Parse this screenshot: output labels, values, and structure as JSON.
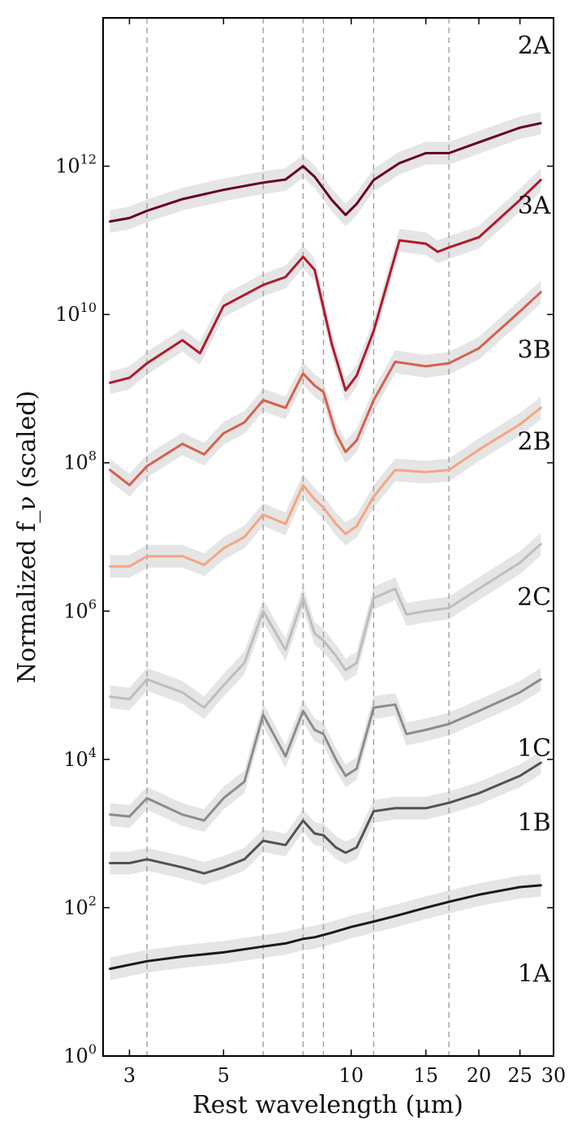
{
  "chart_data": {
    "type": "line",
    "title": "",
    "xlabel": "Rest wavelength (μm)",
    "ylabel": "Normalized f_ν (scaled)",
    "x_scale": "log",
    "y_scale": "log",
    "xlim": [
      2.6,
      30
    ],
    "ylim": [
      1,
      100000000000000.0
    ],
    "grid": false,
    "x_ticks": [
      {
        "value": 3,
        "label": "3"
      },
      {
        "value": 5,
        "label": "5"
      },
      {
        "value": 10,
        "label": "10"
      },
      {
        "value": 15,
        "label": "15"
      },
      {
        "value": 20,
        "label": "20"
      },
      {
        "value": 25,
        "label": "25"
      },
      {
        "value": 30,
        "label": "30"
      }
    ],
    "y_ticks": [
      {
        "value": 1,
        "base": "10",
        "exp": "0"
      },
      {
        "value": 100,
        "base": "10",
        "exp": "2"
      },
      {
        "value": 10000,
        "base": "10",
        "exp": "4"
      },
      {
        "value": 1000000,
        "base": "10",
        "exp": "6"
      },
      {
        "value": 100000000,
        "base": "10",
        "exp": "8"
      },
      {
        "value": 10000000000,
        "base": "10",
        "exp": "10"
      },
      {
        "value": 1000000000000,
        "base": "10",
        "exp": "12"
      }
    ],
    "reference_lines_x": [
      3.3,
      6.2,
      7.7,
      8.6,
      11.3,
      17.0
    ],
    "series": [
      {
        "name": "2A",
        "label_position": [
          27,
          33000000000000.0
        ],
        "color": "#67001f",
        "points": [
          [
            2.7,
            180000000000.0
          ],
          [
            3.0,
            200000000000.0
          ],
          [
            3.3,
            250000000000.0
          ],
          [
            4,
            360000000000.0
          ],
          [
            5,
            480000000000.0
          ],
          [
            6.2,
            600000000000.0
          ],
          [
            7.0,
            660000000000.0
          ],
          [
            7.7,
            1000000000000.0
          ],
          [
            8.2,
            720000000000.0
          ],
          [
            9,
            350000000000.0
          ],
          [
            9.7,
            220000000000.0
          ],
          [
            10.3,
            310000000000.0
          ],
          [
            11.3,
            650000000000.0
          ],
          [
            13,
            1100000000000.0
          ],
          [
            15,
            1500000000000.0
          ],
          [
            17,
            1500000000000.0
          ],
          [
            20,
            2100000000000.0
          ],
          [
            25,
            3300000000000.0
          ],
          [
            28,
            3800000000000.0
          ]
        ]
      },
      {
        "name": "3A",
        "label_position": [
          27,
          230000000000.0
        ],
        "color": "#b2182b",
        "points": [
          [
            2.7,
            1200000000.0
          ],
          [
            3.0,
            1400000000.0
          ],
          [
            3.3,
            2200000000.0
          ],
          [
            4,
            4500000000.0
          ],
          [
            4.4,
            3000000000.0
          ],
          [
            5,
            13000000000.0
          ],
          [
            6.2,
            25000000000.0
          ],
          [
            7.0,
            32000000000.0
          ],
          [
            7.7,
            60000000000.0
          ],
          [
            8.2,
            40000000000.0
          ],
          [
            9,
            4000000000.0
          ],
          [
            9.7,
            950000000.0
          ],
          [
            10.3,
            1500000000.0
          ],
          [
            11.3,
            6000000000.0
          ],
          [
            13,
            100000000000.0
          ],
          [
            15,
            90000000000.0
          ],
          [
            16,
            70000000000.0
          ],
          [
            17,
            80000000000.0
          ],
          [
            20,
            110000000000.0
          ],
          [
            25,
            350000000000.0
          ],
          [
            28,
            650000000000.0
          ]
        ]
      },
      {
        "name": "3B",
        "label_position": [
          27,
          2600000000.0
        ],
        "color": "#d6604d",
        "points": [
          [
            2.7,
            80000000.0
          ],
          [
            3.0,
            50000000.0
          ],
          [
            3.3,
            90000000.0
          ],
          [
            4,
            180000000.0
          ],
          [
            4.5,
            130000000.0
          ],
          [
            5,
            250000000.0
          ],
          [
            5.6,
            350000000.0
          ],
          [
            6.2,
            700000000.0
          ],
          [
            7.0,
            550000000.0
          ],
          [
            7.7,
            1600000000.0
          ],
          [
            8.2,
            1100000000.0
          ],
          [
            8.6,
            900000000.0
          ],
          [
            9.2,
            250000000.0
          ],
          [
            9.7,
            140000000.0
          ],
          [
            10.3,
            200000000.0
          ],
          [
            11.3,
            700000000.0
          ],
          [
            12.7,
            2300000000.0
          ],
          [
            15,
            2000000000.0
          ],
          [
            17,
            2200000000.0
          ],
          [
            20,
            3500000000.0
          ],
          [
            25,
            11000000000.0
          ],
          [
            28,
            20000000000.0
          ]
        ]
      },
      {
        "name": "2B",
        "label_position": [
          27,
          150000000.0
        ],
        "color": "#f4a582",
        "points": [
          [
            2.7,
            4000000.0
          ],
          [
            3.0,
            4000000.0
          ],
          [
            3.3,
            5500000.0
          ],
          [
            4,
            5500000.0
          ],
          [
            4.5,
            4200000.0
          ],
          [
            5,
            7000000.0
          ],
          [
            5.6,
            10000000.0
          ],
          [
            6.2,
            20000000.0
          ],
          [
            7.0,
            15000000.0
          ],
          [
            7.7,
            50000000.0
          ],
          [
            8.2,
            32000000.0
          ],
          [
            8.6,
            25000000.0
          ],
          [
            9.2,
            15000000.0
          ],
          [
            9.7,
            11000000.0
          ],
          [
            10.3,
            14000000.0
          ],
          [
            11.3,
            35000000.0
          ],
          [
            12.7,
            80000000.0
          ],
          [
            15,
            75000000.0
          ],
          [
            17,
            80000000.0
          ],
          [
            20,
            150000000.0
          ],
          [
            25,
            330000000.0
          ],
          [
            28,
            550000000.0
          ]
        ]
      },
      {
        "name": "2C",
        "label_position": [
          27,
          1200000.0
        ],
        "color": "#bdbdbd",
        "points": [
          [
            2.7,
            70000.0
          ],
          [
            3.0,
            65000.0
          ],
          [
            3.3,
            120000.0
          ],
          [
            4,
            80000.0
          ],
          [
            4.5,
            50000.0
          ],
          [
            5,
            100000.0
          ],
          [
            5.6,
            200000.0
          ],
          [
            6.2,
            1000000.0
          ],
          [
            7.0,
            300000.0
          ],
          [
            7.7,
            1500000.0
          ],
          [
            8.2,
            500000.0
          ],
          [
            8.6,
            400000.0
          ],
          [
            9.2,
            250000.0
          ],
          [
            9.7,
            160000.0
          ],
          [
            10.3,
            200000.0
          ],
          [
            11.3,
            1500000.0
          ],
          [
            12.7,
            2000000.0
          ],
          [
            13.5,
            900000.0
          ],
          [
            15,
            1000000.0
          ],
          [
            17,
            1100000.0
          ],
          [
            20,
            2000000.0
          ],
          [
            25,
            4500000.0
          ],
          [
            28,
            8000000.0
          ]
        ]
      },
      {
        "name": "1C",
        "label_position": [
          27,
          11000.0
        ],
        "color": "#8c8c8c",
        "points": [
          [
            2.7,
            1800.0
          ],
          [
            3.0,
            1700.0
          ],
          [
            3.3,
            3000.0
          ],
          [
            4,
            1800.0
          ],
          [
            4.5,
            1500.0
          ],
          [
            5,
            3000.0
          ],
          [
            5.6,
            5000.0
          ],
          [
            6.2,
            40000.0
          ],
          [
            7.0,
            11000.0
          ],
          [
            7.7,
            45000.0
          ],
          [
            8.2,
            25000.0
          ],
          [
            8.6,
            22000.0
          ],
          [
            9.2,
            10000.0
          ],
          [
            9.7,
            6000.0
          ],
          [
            10.3,
            7500.0
          ],
          [
            11.3,
            50000.0
          ],
          [
            12.7,
            55000.0
          ],
          [
            13.5,
            22000.0
          ],
          [
            15,
            25000.0
          ],
          [
            17,
            30000.0
          ],
          [
            20,
            45000.0
          ],
          [
            25,
            80000.0
          ],
          [
            28,
            120000.0
          ]
        ]
      },
      {
        "name": "1B",
        "label_position": [
          27,
          1100.0
        ],
        "color": "#525252",
        "points": [
          [
            2.7,
            400
          ],
          [
            3.0,
            400
          ],
          [
            3.3,
            450
          ],
          [
            4,
            350
          ],
          [
            4.5,
            290
          ],
          [
            5,
            350
          ],
          [
            5.6,
            450
          ],
          [
            6.2,
            800
          ],
          [
            7.0,
            700
          ],
          [
            7.7,
            1500
          ],
          [
            8.2,
            1000
          ],
          [
            8.6,
            950
          ],
          [
            9.2,
            650
          ],
          [
            9.7,
            550
          ],
          [
            10.3,
            650
          ],
          [
            11.3,
            2000
          ],
          [
            12.7,
            2200
          ],
          [
            15,
            2200
          ],
          [
            17,
            2600
          ],
          [
            20,
            3500
          ],
          [
            25,
            6000
          ],
          [
            28,
            9000
          ]
        ]
      },
      {
        "name": "1A",
        "label_position": [
          27,
          10
        ],
        "color": "#1a1a1a",
        "points": [
          [
            2.7,
            15
          ],
          [
            3.0,
            17
          ],
          [
            3.3,
            19
          ],
          [
            4,
            22
          ],
          [
            5,
            25
          ],
          [
            6.2,
            30
          ],
          [
            7.0,
            33
          ],
          [
            7.7,
            38
          ],
          [
            8.2,
            40
          ],
          [
            9,
            46
          ],
          [
            10,
            55
          ],
          [
            11.3,
            65
          ],
          [
            13,
            80
          ],
          [
            15,
            100
          ],
          [
            17,
            120
          ],
          [
            20,
            150
          ],
          [
            25,
            190
          ],
          [
            28,
            200
          ]
        ]
      }
    ]
  }
}
